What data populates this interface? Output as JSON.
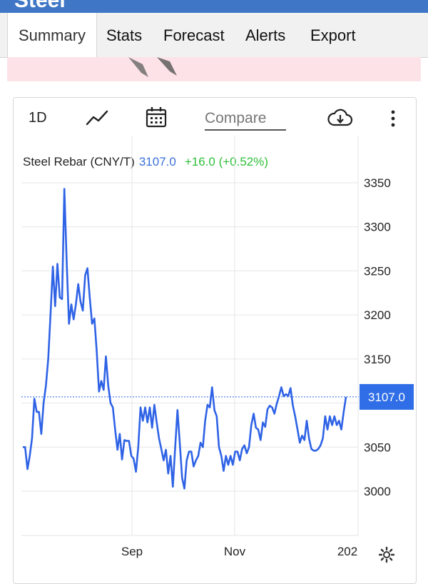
{
  "header": {
    "title": "Steel"
  },
  "tabs": [
    {
      "label": "Summary",
      "active": true
    },
    {
      "label": "Stats"
    },
    {
      "label": "Forecast"
    },
    {
      "label": "Alerts"
    },
    {
      "label": "Export"
    }
  ],
  "toolbar": {
    "interval_label": "1D",
    "chart_type_icon": "line-chart-icon",
    "date_range_icon": "calendar-icon",
    "compare_placeholder": "Compare",
    "download_icon": "cloud-download-icon",
    "more_icon": "more-vertical-icon"
  },
  "legend": {
    "name": "Steel Rebar (CNY/T)",
    "price": "3107.0",
    "change": "+16.0 (+0.52%)"
  },
  "colors": {
    "line": "#2f63e6",
    "up": "#2fbf3a",
    "accent": "#3f77c6",
    "price_tag": "#2f6ee6"
  },
  "chart_data": {
    "type": "line",
    "series": [
      {
        "name": "Steel Rebar (CNY/T)",
        "values": [
          3050,
          3050,
          3025,
          3040,
          3060,
          3105,
          3090,
          3090,
          3065,
          3100,
          3120,
          3150,
          3200,
          3255,
          3210,
          3258,
          3220,
          3218,
          3343,
          3260,
          3190,
          3212,
          3195,
          3212,
          3235,
          3215,
          3205,
          3245,
          3253,
          3220,
          3190,
          3196,
          3160,
          3113,
          3125,
          3115,
          3153,
          3120,
          3100,
          3095,
          3070,
          3047,
          3065,
          3036,
          3058,
          3057,
          3057,
          3040,
          3037,
          3022,
          3050,
          3095,
          3080,
          3095,
          3078,
          3095,
          3072,
          3098,
          3078,
          3060,
          3048,
          3035,
          3047,
          3020,
          3040,
          3005,
          3050,
          3092,
          3055,
          3015,
          3003,
          3035,
          3045,
          3045,
          3028,
          3035,
          3040,
          3055,
          3050,
          3080,
          3098,
          3095,
          3118,
          3092,
          3085,
          3050,
          3040,
          3023,
          3040,
          3030,
          3040,
          3030,
          3045,
          3045,
          3035,
          3048,
          3052,
          3043,
          3050,
          3075,
          3088,
          3072,
          3070,
          3058,
          3078,
          3073,
          3093,
          3097,
          3095,
          3088,
          3099,
          3108,
          3118,
          3108,
          3110,
          3108,
          3117,
          3097,
          3085,
          3070,
          3055,
          3063,
          3058,
          3080,
          3060,
          3048,
          3046,
          3046,
          3048,
          3052,
          3060,
          3085,
          3070,
          3085,
          3075,
          3085,
          3075,
          3080,
          3070,
          3090,
          3107
        ]
      }
    ],
    "last_value": 3107.0,
    "y_ticks": [
      "3000",
      "3050",
      "3100",
      "3150",
      "3200",
      "3250",
      "3300",
      "3350"
    ],
    "ylim": [
      2950,
      3390
    ],
    "x_ticks": [
      "Sep",
      "Nov",
      "202"
    ],
    "grid": true
  },
  "footer": {
    "settings_icon": "gear-icon"
  }
}
